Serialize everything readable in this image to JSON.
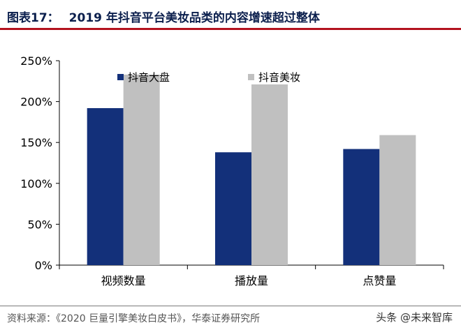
{
  "figure": {
    "label": "图表17：",
    "title": "2019 年抖音平台美妆品类的内容增速超过整体"
  },
  "source": "资料来源：《2020 巨量引擎美妆白皮书》，华泰证券研究所",
  "watermark": "头条 @未来智库",
  "colors": {
    "accent_rule": "#b3121e",
    "series_1": "#13307a",
    "series_2": "#c0c0c0"
  },
  "chart_data": {
    "type": "bar",
    "categories": [
      "视频数量",
      "播放量",
      "点赞量"
    ],
    "series": [
      {
        "name": "抖音大盘",
        "values": [
          192,
          138,
          142
        ]
      },
      {
        "name": "抖音美妆",
        "values": [
          233,
          221,
          159
        ]
      }
    ],
    "ylim": [
      0,
      250
    ],
    "yticks": [
      0,
      50,
      100,
      150,
      200,
      250
    ],
    "ytick_labels": [
      "0%",
      "50%",
      "100%",
      "150%",
      "200%",
      "250%"
    ],
    "xlabel": "",
    "ylabel": "",
    "legend_position": "top-center",
    "grid": false
  }
}
